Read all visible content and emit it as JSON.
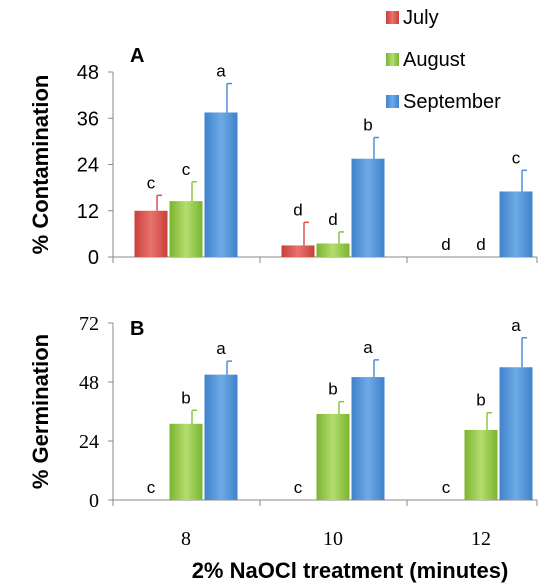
{
  "legend": [
    {
      "label": "July",
      "color": "#d9534f"
    },
    {
      "label": "August",
      "color": "#8dc63f"
    },
    {
      "label": "September",
      "color": "#4a90d9"
    }
  ],
  "xlabel": "2% NaOCl treatment (minutes)",
  "chart_data": [
    {
      "type": "bar",
      "panel": "A",
      "ylabel": "% Contamination",
      "ylim": [
        0,
        48
      ],
      "yticks": [
        0,
        12,
        24,
        36,
        48
      ],
      "categories": [
        "8",
        "10",
        "12"
      ],
      "series": [
        {
          "name": "July",
          "color": "#d9534f",
          "values": [
            12,
            3,
            0
          ],
          "errors": [
            4,
            6,
            0
          ],
          "letters": [
            "c",
            "d",
            "d"
          ]
        },
        {
          "name": "August",
          "color": "#8dc63f",
          "values": [
            14.5,
            3.5,
            0
          ],
          "errors": [
            5,
            3,
            0
          ],
          "letters": [
            "c",
            "d",
            "d"
          ]
        },
        {
          "name": "September",
          "color": "#4a90d9",
          "values": [
            37.5,
            25.5,
            17
          ],
          "errors": [
            7.5,
            5.5,
            5.5
          ],
          "letters": [
            "a",
            "b",
            "c"
          ]
        }
      ]
    },
    {
      "type": "bar",
      "panel": "B",
      "ylabel": "% Germination",
      "ylim": [
        0,
        72
      ],
      "yticks": [
        0,
        24,
        48,
        72
      ],
      "categories": [
        "8",
        "10",
        "12"
      ],
      "series": [
        {
          "name": "July",
          "color": "#d9534f",
          "values": [
            0,
            0,
            0
          ],
          "errors": [
            0,
            0,
            0
          ],
          "letters": [
            "c",
            "c",
            "c"
          ]
        },
        {
          "name": "August",
          "color": "#8dc63f",
          "values": [
            31,
            35,
            28.5
          ],
          "errors": [
            5.5,
            5,
            7
          ],
          "letters": [
            "b",
            "b",
            "b"
          ]
        },
        {
          "name": "September",
          "color": "#4a90d9",
          "values": [
            51,
            50,
            54
          ],
          "errors": [
            5.5,
            7,
            12
          ],
          "letters": [
            "a",
            "a",
            "a"
          ]
        }
      ]
    }
  ]
}
